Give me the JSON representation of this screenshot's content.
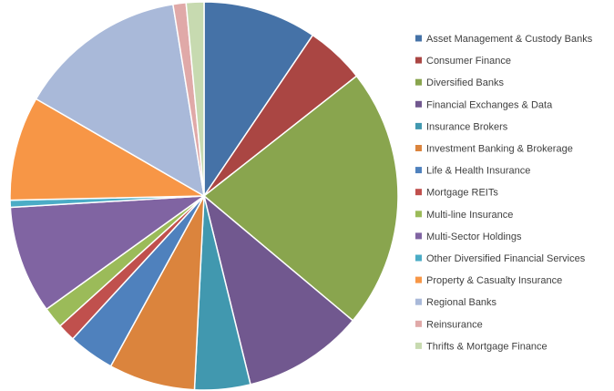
{
  "chart_data": {
    "type": "pie",
    "legend_position": "right",
    "categories": [
      "Asset Management & Custody Banks",
      "Consumer Finance",
      "Diversified Banks",
      "Financial Exchanges & Data",
      "Insurance Brokers",
      "Investment Banking & Brokerage",
      "Life & Health Insurance",
      "Mortgage REITs",
      "Multi-line Insurance",
      "Multi-Sector Holdings",
      "Other Diversified Financial Services",
      "Property & Casualty Insurance",
      "Regional Banks",
      "Reinsurance",
      "Thrifts & Mortgage Finance"
    ],
    "values": [
      9.6,
      5.0,
      22.0,
      10.2,
      4.7,
      7.3,
      3.9,
      1.5,
      1.8,
      9.1,
      0.6,
      8.8,
      14.3,
      1.1,
      1.5
    ],
    "colors": [
      "#4572A7",
      "#AA4643",
      "#89A54E",
      "#71588F",
      "#4198AF",
      "#DB843D",
      "#4F81BD",
      "#C0504D",
      "#9BBB59",
      "#8064A2",
      "#4BACC6",
      "#F79646",
      "#A9B9D9",
      "#E0A9A8",
      "#C7DAB0"
    ]
  }
}
